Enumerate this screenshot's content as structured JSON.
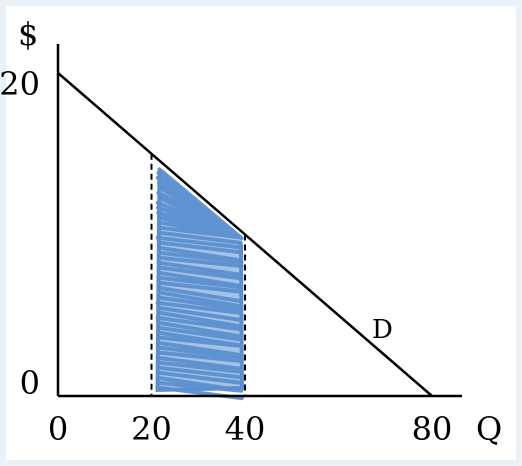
{
  "chart_data": {
    "type": "line",
    "title": "",
    "ylabel": "$",
    "xlabel": "Q",
    "xlim": [
      0,
      80
    ],
    "ylim": [
      0,
      20
    ],
    "x_ticks": [
      "0",
      "20",
      "40",
      "80"
    ],
    "y_ticks": [
      "0",
      "20"
    ],
    "series": [
      {
        "name": "D",
        "x": [
          0,
          80
        ],
        "y": [
          20,
          0
        ]
      }
    ],
    "shaded_region": {
      "x_from": 20,
      "x_to": 40,
      "color": "#5b8fcf"
    },
    "dashed_lines_x": [
      20,
      40
    ],
    "grid": false
  }
}
